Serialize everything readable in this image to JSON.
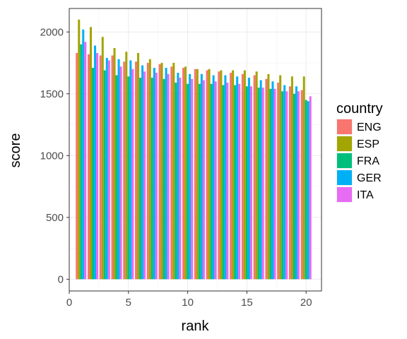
{
  "chart_data": {
    "type": "bar",
    "xlabel": "rank",
    "ylabel": "score",
    "x": [
      1,
      2,
      3,
      4,
      5,
      6,
      7,
      8,
      9,
      10,
      11,
      12,
      13,
      14,
      15,
      16,
      17,
      18,
      19,
      20
    ],
    "xlim": [
      0,
      21.3
    ],
    "ylim": [
      -95,
      2190
    ],
    "xticks": [
      0,
      5,
      10,
      15,
      20
    ],
    "yticks": [
      0,
      500,
      1000,
      1500,
      2000
    ],
    "grid": true,
    "legend": {
      "title": "country",
      "position": "right"
    },
    "series": [
      {
        "name": "ENG",
        "color": "#F8766D",
        "values": [
          1830,
          1820,
          1810,
          1810,
          1760,
          1760,
          1750,
          1740,
          1720,
          1710,
          1700,
          1690,
          1680,
          1670,
          1660,
          1650,
          1620,
          1590,
          1560,
          1530
        ]
      },
      {
        "name": "ESP",
        "color": "#A3A500",
        "values": [
          2100,
          2040,
          1960,
          1870,
          1840,
          1830,
          1780,
          1750,
          1750,
          1720,
          1700,
          1700,
          1690,
          1690,
          1690,
          1680,
          1660,
          1650,
          1640,
          1640
        ]
      },
      {
        "name": "FRA",
        "color": "#00BF7D",
        "values": [
          1900,
          1710,
          1690,
          1650,
          1640,
          1630,
          1630,
          1620,
          1590,
          1580,
          1580,
          1580,
          1570,
          1570,
          1560,
          1550,
          1540,
          1520,
          1500,
          1450
        ]
      },
      {
        "name": "GER",
        "color": "#00B0F6",
        "values": [
          2020,
          1890,
          1790,
          1780,
          1770,
          1730,
          1710,
          1710,
          1670,
          1660,
          1660,
          1650,
          1650,
          1640,
          1630,
          1610,
          1600,
          1570,
          1560,
          1440
        ]
      },
      {
        "name": "ITA",
        "color": "#E76BF3",
        "values": [
          1920,
          1830,
          1770,
          1720,
          1700,
          1680,
          1670,
          1660,
          1630,
          1620,
          1610,
          1600,
          1590,
          1580,
          1560,
          1550,
          1540,
          1520,
          1520,
          1480
        ]
      }
    ]
  }
}
